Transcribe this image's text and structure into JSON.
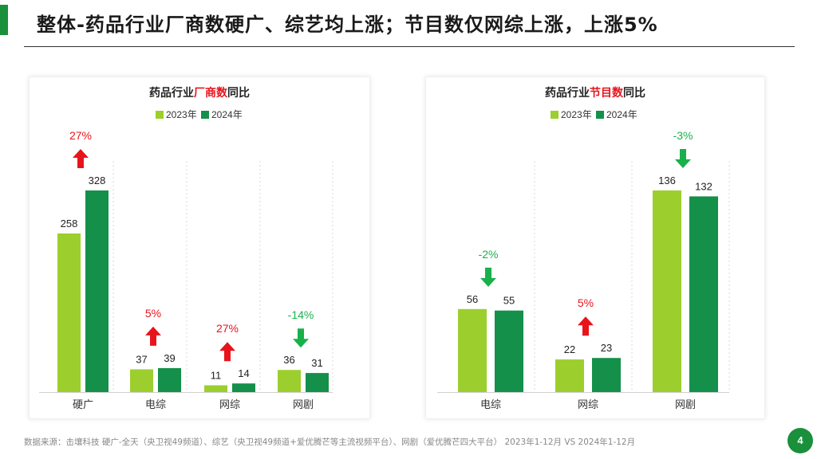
{
  "page": {
    "title": "整体-药品行业厂商数硬广、综艺均上涨；节目数仅网综上涨，上涨5%",
    "footer": "数据来源：击壤科技 硬广-全天（央卫视49频道）、综艺（央卫视49频道+爱优腾芒等主流视频平台）、网剧（爱优腾芒四大平台） 2023年1-12月 VS 2024年1-12月",
    "page_number": "4"
  },
  "colors": {
    "light_green": "#9ccf2e",
    "dark_green": "#14904a",
    "up_red": "#e8141c",
    "down_green": "#19b04b",
    "brand_green": "#1a8f3c"
  },
  "chart_data": [
    {
      "type": "bar",
      "title_parts": [
        "药品行业",
        "厂商数",
        "同比"
      ],
      "categories": [
        "硬广",
        "电综",
        "网综",
        "网剧"
      ],
      "series": [
        {
          "name": "2023年",
          "values": [
            258,
            37,
            11,
            36
          ]
        },
        {
          "name": "2024年",
          "values": [
            328,
            39,
            14,
            31
          ]
        }
      ],
      "changes": [
        "27%",
        "5%",
        "27%",
        "-14%"
      ],
      "directions": [
        "up",
        "up",
        "up",
        "down"
      ],
      "ylim": [
        0,
        328
      ],
      "grid": false,
      "legend_position": "top-center"
    },
    {
      "type": "bar",
      "title_parts": [
        "药品行业",
        "节目数",
        "同比"
      ],
      "categories": [
        "电综",
        "网综",
        "网剧"
      ],
      "series": [
        {
          "name": "2023年",
          "values": [
            56,
            22,
            136
          ]
        },
        {
          "name": "2024年",
          "values": [
            55,
            23,
            132
          ]
        }
      ],
      "changes": [
        "-2%",
        "5%",
        "-3%"
      ],
      "directions": [
        "down",
        "up",
        "down"
      ],
      "ylim": [
        0,
        136
      ],
      "grid": false,
      "legend_position": "top-center"
    }
  ]
}
